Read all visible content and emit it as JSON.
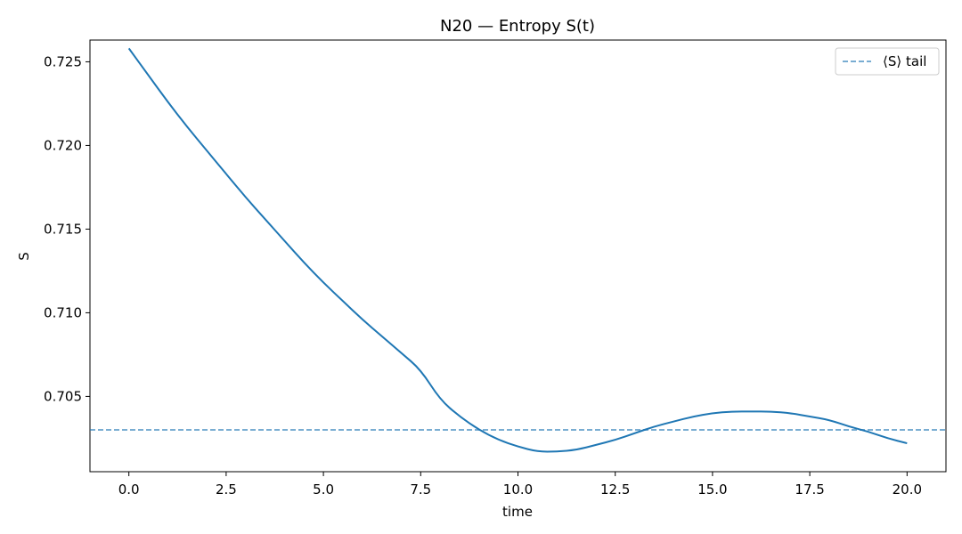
{
  "chart_data": {
    "type": "line",
    "title": "N20 — Entropy S(t)",
    "xlabel": "time",
    "ylabel": "S",
    "xlim": [
      -1.0,
      21.0
    ],
    "ylim": [
      0.7005,
      0.7263
    ],
    "xticks": [
      0.0,
      2.5,
      5.0,
      7.5,
      10.0,
      12.5,
      15.0,
      17.5,
      20.0
    ],
    "xtick_labels": [
      "0.0",
      "2.5",
      "5.0",
      "7.5",
      "10.0",
      "12.5",
      "15.0",
      "17.5",
      "20.0"
    ],
    "yticks": [
      0.705,
      0.71,
      0.715,
      0.72,
      0.725
    ],
    "ytick_labels": [
      "0.705",
      "0.710",
      "0.715",
      "0.720",
      "0.725"
    ],
    "grid": false,
    "legend_position": "top-right",
    "series": [
      {
        "color": "#1f77b4",
        "style": "solid",
        "x": [
          0.0,
          0.5,
          1.0,
          1.5,
          2.0,
          2.5,
          3.0,
          3.5,
          4.0,
          4.5,
          5.0,
          5.5,
          6.0,
          6.5,
          7.0,
          7.5,
          8.0,
          8.5,
          9.0,
          9.5,
          10.0,
          10.5,
          11.0,
          11.5,
          12.0,
          12.5,
          13.0,
          13.5,
          14.0,
          14.5,
          15.0,
          15.5,
          16.0,
          16.5,
          17.0,
          17.5,
          18.0,
          18.5,
          19.0,
          19.5,
          20.0
        ],
        "y": [
          0.7258,
          0.7242,
          0.7226,
          0.7211,
          0.7197,
          0.7183,
          0.7169,
          0.7156,
          0.7143,
          0.713,
          0.7118,
          0.7107,
          0.7096,
          0.7086,
          0.7076,
          0.7066,
          0.7048,
          0.7038,
          0.703,
          0.7024,
          0.702,
          0.7017,
          0.7017,
          0.7018,
          0.7021,
          0.7024,
          0.7028,
          0.7032,
          0.7035,
          0.7038,
          0.704,
          0.7041,
          0.7041,
          0.7041,
          0.704,
          0.7038,
          0.7036,
          0.7032,
          0.7029,
          0.7025,
          0.7022
        ]
      },
      {
        "name": "⟨S⟩ tail",
        "color": "#1f77b4",
        "style": "dashed",
        "opacity": 0.6,
        "hline": 0.703
      }
    ]
  }
}
